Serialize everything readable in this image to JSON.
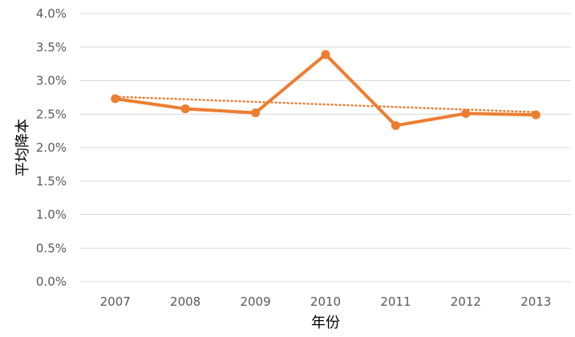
{
  "chart_data": {
    "type": "line",
    "title": "",
    "xlabel": "年份",
    "ylabel": "平均降本",
    "categories": [
      "2007",
      "2008",
      "2009",
      "2010",
      "2011",
      "2012",
      "2013"
    ],
    "series": [
      {
        "values": [
          2.73,
          2.58,
          2.52,
          3.39,
          2.33,
          2.51,
          2.49
        ]
      }
    ],
    "trendline": {
      "type": "linear",
      "style": "dotted",
      "start": 2.76,
      "end": 2.53
    },
    "ylim": [
      0,
      4.0
    ],
    "yticks": [
      "0.0%",
      "0.5%",
      "1.0%",
      "1.5%",
      "2.0%",
      "2.5%",
      "3.0%",
      "3.5%",
      "4.0%"
    ],
    "grid": true,
    "legend": "none",
    "colors": {
      "series": "#ED7D31",
      "grid": "#D9D9D9",
      "tick_text": "#595959"
    }
  }
}
